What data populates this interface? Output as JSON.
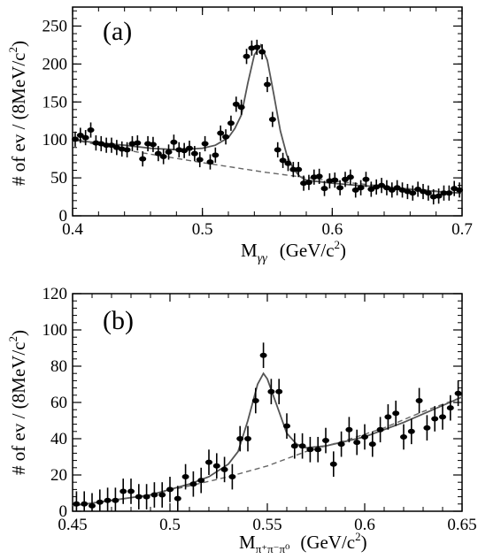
{
  "chart_data": [
    {
      "type": "scatter",
      "panel_label": "(a)",
      "xlabel": "M_γγ (GeV/c²)",
      "xlabel_parts": {
        "base": "M",
        "sub": "γγ",
        "unit": "(GeV/c",
        "sup": "2",
        "close": ")"
      },
      "ylabel": "# of ev / (8MeV/c²)",
      "ylabel_parts": {
        "main": "# of ev / (8MeV/c",
        "sup": "2",
        "close": ")"
      },
      "xlim": [
        0.4,
        0.7
      ],
      "ylim": [
        0,
        275
      ],
      "xticks": [
        0.4,
        0.5,
        0.6,
        0.7
      ],
      "xtick_labels": [
        "0.4",
        "0.5",
        "0.6",
        "0.7"
      ],
      "yticks": [
        0,
        50,
        100,
        150,
        200,
        250
      ],
      "ytick_labels": [
        "0",
        "50",
        "100",
        "150",
        "200",
        "250"
      ],
      "series": [
        {
          "style": "points-with-error-bars",
          "x": [
            0.402,
            0.406,
            0.41,
            0.414,
            0.418,
            0.422,
            0.426,
            0.43,
            0.434,
            0.438,
            0.442,
            0.446,
            0.45,
            0.454,
            0.458,
            0.462,
            0.466,
            0.47,
            0.474,
            0.478,
            0.482,
            0.486,
            0.49,
            0.494,
            0.498,
            0.502,
            0.506,
            0.51,
            0.514,
            0.518,
            0.522,
            0.526,
            0.53,
            0.534,
            0.538,
            0.542,
            0.546,
            0.55,
            0.554,
            0.558,
            0.562,
            0.566,
            0.57,
            0.574,
            0.578,
            0.582,
            0.586,
            0.59,
            0.594,
            0.598,
            0.602,
            0.606,
            0.61,
            0.614,
            0.618,
            0.622,
            0.626,
            0.63,
            0.634,
            0.638,
            0.642,
            0.646,
            0.65,
            0.654,
            0.658,
            0.662,
            0.666,
            0.67,
            0.674,
            0.678,
            0.682,
            0.686,
            0.69,
            0.694,
            0.698
          ],
          "y": [
            101,
            106,
            103,
            113,
            96,
            95,
            93,
            93,
            90,
            88,
            87,
            95,
            96,
            75,
            95,
            94,
            82,
            78,
            84,
            97,
            87,
            86,
            89,
            82,
            74,
            95,
            71,
            80,
            109,
            104,
            122,
            147,
            143,
            210,
            221,
            222,
            216,
            173,
            127,
            87,
            73,
            69,
            61,
            61,
            43,
            44,
            51,
            52,
            36,
            46,
            47,
            37,
            48,
            51,
            34,
            37,
            48,
            35,
            38,
            40,
            37,
            34,
            37,
            34,
            32,
            30,
            35,
            32,
            30,
            25,
            26,
            30,
            30,
            36,
            34
          ],
          "yerr": 10
        },
        {
          "style": "solid-curve",
          "name": "",
          "x": [
            0.4,
            0.42,
            0.44,
            0.46,
            0.48,
            0.5,
            0.51,
            0.52,
            0.525,
            0.53,
            0.535,
            0.54,
            0.545,
            0.55,
            0.555,
            0.56,
            0.565,
            0.57,
            0.575,
            0.58,
            0.6,
            0.62,
            0.64,
            0.66,
            0.68,
            0.7
          ],
          "y": [
            100,
            96,
            93,
            89,
            87,
            89,
            93,
            103,
            115,
            133,
            175,
            212,
            225,
            205,
            160,
            112,
            80,
            62,
            52,
            47,
            43,
            40,
            38,
            35,
            32,
            30
          ]
        },
        {
          "style": "dashed-curve",
          "name": "",
          "x": [
            0.4,
            0.45,
            0.5,
            0.55,
            0.6,
            0.65,
            0.7
          ],
          "y": [
            100,
            84,
            70,
            57,
            46,
            37,
            30
          ]
        }
      ]
    },
    {
      "type": "scatter",
      "panel_label": "(b)",
      "xlabel": "M_π⁺π⁻π⁰ (GeV/c²)",
      "xlabel_parts": {
        "base": "M",
        "sub": "π⁺π⁻π⁰",
        "unit": "(GeV/c",
        "sup": "2",
        "close": ")"
      },
      "ylabel": "# of ev / (8MeV/c²)",
      "ylabel_parts": {
        "main": "# of ev / (8MeV/c",
        "sup": "2",
        "close": ")"
      },
      "xlim": [
        0.45,
        0.65
      ],
      "ylim": [
        0,
        120
      ],
      "xticks": [
        0.45,
        0.5,
        0.55,
        0.6,
        0.65
      ],
      "xtick_labels": [
        "0.45",
        "0.5",
        "0.55",
        "0.6",
        "0.65"
      ],
      "yticks": [
        0,
        20,
        40,
        60,
        80,
        100,
        120
      ],
      "ytick_labels": [
        "0",
        "20",
        "40",
        "60",
        "80",
        "100",
        "120"
      ],
      "series": [
        {
          "style": "points-with-error-bars",
          "x": [
            0.452,
            0.456,
            0.46,
            0.464,
            0.468,
            0.472,
            0.476,
            0.48,
            0.484,
            0.488,
            0.492,
            0.496,
            0.5,
            0.504,
            0.508,
            0.512,
            0.516,
            0.52,
            0.524,
            0.528,
            0.532,
            0.536,
            0.54,
            0.544,
            0.548,
            0.552,
            0.556,
            0.56,
            0.564,
            0.568,
            0.572,
            0.576,
            0.58,
            0.584,
            0.588,
            0.592,
            0.596,
            0.6,
            0.604,
            0.608,
            0.612,
            0.616,
            0.62,
            0.624,
            0.628,
            0.632,
            0.636,
            0.64,
            0.644,
            0.648
          ],
          "y": [
            4,
            4,
            3,
            5,
            6,
            6,
            11,
            11,
            8,
            8,
            9,
            9,
            12,
            7,
            19,
            15,
            17,
            27,
            25,
            23,
            19,
            40,
            40,
            61,
            86,
            66,
            66,
            47,
            36,
            36,
            34,
            34,
            39,
            26,
            37,
            45,
            38,
            41,
            37,
            45,
            52,
            54,
            41,
            44,
            61,
            46,
            51,
            52,
            57,
            65
          ],
          "yerr": 7
        },
        {
          "style": "solid-curve",
          "name": "",
          "x": [
            0.45,
            0.47,
            0.49,
            0.51,
            0.52,
            0.53,
            0.535,
            0.54,
            0.545,
            0.548,
            0.55,
            0.555,
            0.56,
            0.565,
            0.57,
            0.58,
            0.6,
            0.62,
            0.65
          ],
          "y": [
            3,
            6,
            9,
            15,
            19,
            26,
            33,
            50,
            70,
            76,
            73,
            58,
            43,
            37,
            35,
            36,
            41,
            49,
            63
          ]
        },
        {
          "style": "dashed-curve",
          "name": "",
          "x": [
            0.45,
            0.47,
            0.49,
            0.51,
            0.53,
            0.55,
            0.57,
            0.59,
            0.61,
            0.63,
            0.65
          ],
          "y": [
            3,
            6,
            9,
            14,
            19,
            25,
            33,
            39,
            46,
            55,
            63
          ]
        }
      ]
    }
  ]
}
